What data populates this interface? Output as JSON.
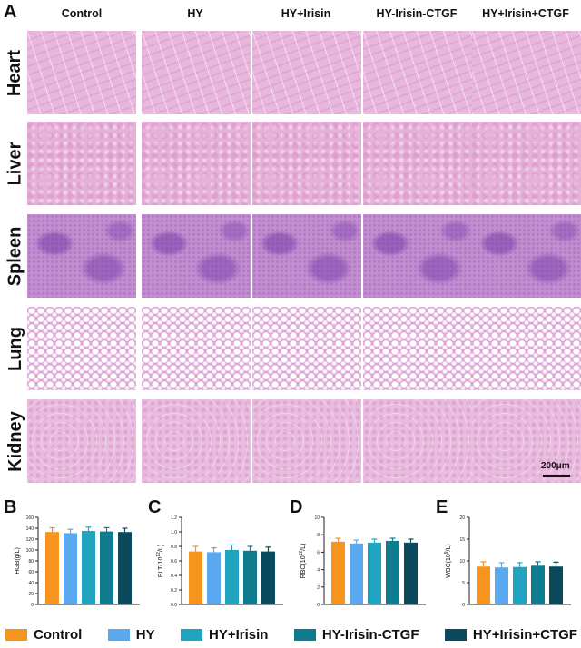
{
  "panels": {
    "a": "A",
    "b": "B",
    "c": "C",
    "d": "D",
    "e": "E"
  },
  "columns": [
    "Control",
    "HY",
    "HY+Irisin",
    "HY-Irisin-CTGF",
    "HY+Irisin+CTGF"
  ],
  "rows": [
    "Heart",
    "Liver",
    "Spleen",
    "Lung",
    "Kidney"
  ],
  "scale_bar": "200μm",
  "colors": {
    "Control": "#f7941d",
    "HY": "#5aa9f0",
    "HY+Irisin": "#21a4bf",
    "HY-Irisin-CTGF": "#0f7b8e",
    "HY+Irisin+CTGF": "#0b4a5c"
  },
  "legend": [
    {
      "label": "Control",
      "color": "#f7941d"
    },
    {
      "label": "HY",
      "color": "#5aa9f0"
    },
    {
      "label": "HY+Irisin",
      "color": "#21a4bf"
    },
    {
      "label": "HY-Irisin-CTGF",
      "color": "#0f7b8e"
    },
    {
      "label": "HY+Irisin+CTGF",
      "color": "#0b4a5c"
    }
  ],
  "chart_data": [
    {
      "type": "bar",
      "panel": "B",
      "ylabel": "HGB(g/L)",
      "ylim": [
        0,
        160
      ],
      "yticks": [
        0,
        20,
        40,
        60,
        80,
        100,
        120,
        140,
        160
      ],
      "categories": [
        "Control",
        "HY",
        "HY+Irisin",
        "HY-Irisin-CTGF",
        "HY+Irisin+CTGF"
      ],
      "values": [
        133,
        131,
        135,
        134,
        133
      ],
      "errors": [
        8,
        7,
        7,
        7,
        7
      ]
    },
    {
      "type": "bar",
      "panel": "C",
      "ylabel": "PLT(10^12/L)",
      "ylim": [
        0,
        1.2
      ],
      "yticks": [
        0.0,
        0.2,
        0.4,
        0.6,
        0.8,
        1.0,
        1.2
      ],
      "categories": [
        "Control",
        "HY",
        "HY+Irisin",
        "HY-Irisin-CTGF",
        "HY+Irisin+CTGF"
      ],
      "values": [
        0.73,
        0.72,
        0.75,
        0.74,
        0.73
      ],
      "errors": [
        0.07,
        0.06,
        0.07,
        0.06,
        0.06
      ]
    },
    {
      "type": "bar",
      "panel": "D",
      "ylabel": "RBC(10^12/L)",
      "ylim": [
        0,
        10
      ],
      "yticks": [
        0,
        2,
        4,
        6,
        8,
        10
      ],
      "categories": [
        "Control",
        "HY",
        "HY+Irisin",
        "HY-Irisin-CTGF",
        "HY+Irisin+CTGF"
      ],
      "values": [
        7.2,
        7.0,
        7.1,
        7.3,
        7.1
      ],
      "errors": [
        0.4,
        0.4,
        0.4,
        0.3,
        0.4
      ]
    },
    {
      "type": "bar",
      "panel": "E",
      "ylabel": "WBC(10^9/L)",
      "ylim": [
        0,
        20
      ],
      "yticks": [
        0,
        5,
        10,
        15,
        20
      ],
      "categories": [
        "Control",
        "HY",
        "HY+Irisin",
        "HY-Irisin-CTGF",
        "HY+Irisin+CTGF"
      ],
      "values": [
        8.7,
        8.5,
        8.6,
        8.9,
        8.7
      ],
      "errors": [
        1.1,
        1.1,
        1.0,
        0.9,
        1.0
      ]
    }
  ]
}
